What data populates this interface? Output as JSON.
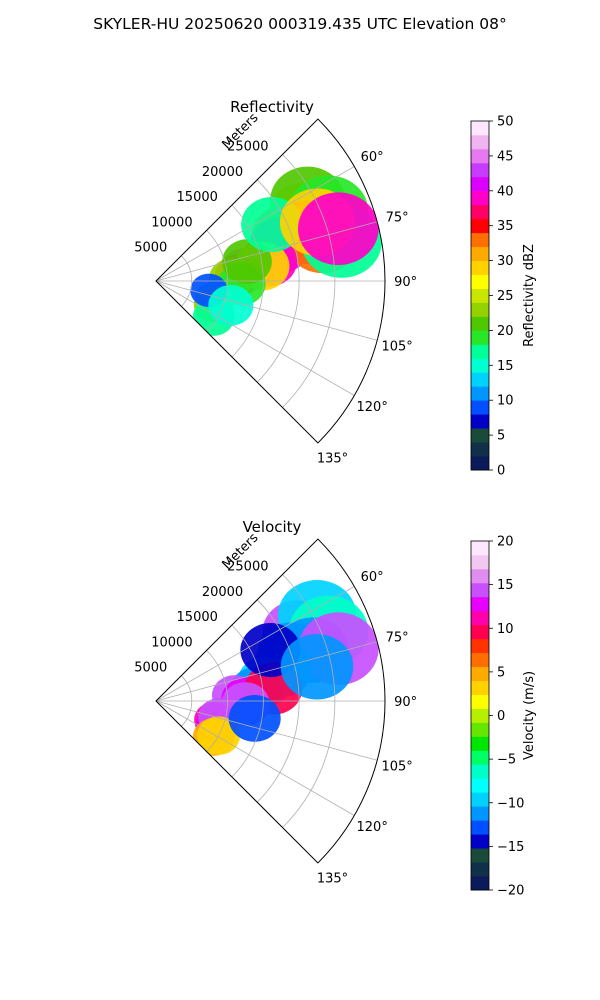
{
  "figure": {
    "suptitle": "SKYLER-HU  20250620  000319.435 UTC Elevation 08°"
  },
  "chart_data": [
    {
      "type": "polar-ppi",
      "title": "Reflectivity",
      "radial_label": "Meters",
      "range_ticks": [
        "5000",
        "10000",
        "15000",
        "20000",
        "25000"
      ],
      "range_values": [
        5000,
        10000,
        15000,
        20000,
        25000
      ],
      "range_max": 32000,
      "azimuth_limits": [
        45,
        135
      ],
      "azimuth_ticks": [
        "60°",
        "75°",
        "90°",
        "105°",
        "120°",
        "135°"
      ],
      "azimuth_values": [
        60,
        75,
        90,
        105,
        120,
        135
      ],
      "colorbar": {
        "label": "Reflectivity dBZ",
        "min": 0,
        "max": 50,
        "ticks": [
          "0",
          "5",
          "10",
          "15",
          "20",
          "25",
          "30",
          "35",
          "40",
          "45",
          "50"
        ],
        "tick_values": [
          0,
          5,
          10,
          15,
          20,
          25,
          30,
          35,
          40,
          45,
          50
        ],
        "palette": [
          "#0a1a5a",
          "#10304a",
          "#1a4a3a",
          "#0000c8",
          "#0050ff",
          "#0096ff",
          "#00d2ff",
          "#00ffd2",
          "#00ff96",
          "#28e628",
          "#50c800",
          "#96d200",
          "#c8e600",
          "#ffff00",
          "#ffd200",
          "#ffaa00",
          "#ff6e00",
          "#ff0000",
          "#ff0064",
          "#ff00c8",
          "#dc00ff",
          "#c83cff",
          "#e678f0",
          "#f0b4f0",
          "#ffe6ff"
        ]
      },
      "cells": [
        {
          "az": 66,
          "r": 22500,
          "dbz": 24
        },
        {
          "az": 62,
          "r": 24000,
          "dbz": 20
        },
        {
          "az": 68,
          "r": 26000,
          "dbz": 18
        },
        {
          "az": 72,
          "r": 22000,
          "dbz": 36
        },
        {
          "az": 70,
          "r": 19000,
          "dbz": 32
        },
        {
          "az": 74,
          "r": 18000,
          "dbz": 40
        },
        {
          "az": 76,
          "r": 24000,
          "dbz": 33
        },
        {
          "az": 78,
          "r": 26500,
          "dbz": 17
        },
        {
          "az": 80,
          "r": 16000,
          "dbz": 38
        },
        {
          "az": 83,
          "r": 12500,
          "dbz": 42
        },
        {
          "az": 86,
          "r": 11500,
          "dbz": 35
        },
        {
          "az": 82,
          "r": 15000,
          "dbz": 29
        },
        {
          "az": 88,
          "r": 10500,
          "dbz": 22
        },
        {
          "az": 92,
          "r": 12000,
          "dbz": 18
        },
        {
          "az": 78,
          "r": 13000,
          "dbz": 20
        },
        {
          "az": 64,
          "r": 18000,
          "dbz": 16
        },
        {
          "az": 70,
          "r": 24000,
          "dbz": 28
        },
        {
          "az": 74,
          "r": 26500,
          "dbz": 38
        },
        {
          "az": 108,
          "r": 8500,
          "dbz": 14
        },
        {
          "az": 112,
          "r": 8700,
          "dbz": 22
        },
        {
          "az": 122,
          "r": 9500,
          "dbz": 16
        },
        {
          "az": 100,
          "r": 7500,
          "dbz": 8
        },
        {
          "az": 108,
          "r": 11000,
          "dbz": 14
        }
      ]
    },
    {
      "type": "polar-ppi",
      "title": "Velocity",
      "radial_label": "Meters",
      "range_ticks": [
        "5000",
        "10000",
        "15000",
        "20000",
        "25000"
      ],
      "range_values": [
        5000,
        10000,
        15000,
        20000,
        25000
      ],
      "range_max": 32000,
      "azimuth_limits": [
        45,
        135
      ],
      "azimuth_ticks": [
        "60°",
        "75°",
        "90°",
        "105°",
        "120°",
        "135°"
      ],
      "azimuth_values": [
        60,
        75,
        90,
        105,
        120,
        135
      ],
      "colorbar": {
        "label": "Velocity (m/s)",
        "min": -20,
        "max": 20,
        "ticks": [
          "−20",
          "−15",
          "−10",
          "−5",
          "0",
          "5",
          "10",
          "15",
          "20"
        ],
        "tick_values": [
          -20,
          -15,
          -10,
          -5,
          0,
          5,
          10,
          15,
          20
        ],
        "palette": [
          "#0a1a5a",
          "#10304a",
          "#1a4a3a",
          "#0000c8",
          "#0050ff",
          "#0096ff",
          "#00d2ff",
          "#00ffff",
          "#00ffc8",
          "#00ff64",
          "#00e600",
          "#64e600",
          "#b4f000",
          "#ffff00",
          "#ffd200",
          "#ffaa00",
          "#ff6e00",
          "#ff3200",
          "#ff0050",
          "#ff00aa",
          "#e600ff",
          "#c850ff",
          "#e08cf0",
          "#f0c8f0",
          "#ffe6ff"
        ]
      },
      "cells": [
        {
          "az": 64,
          "r": 22000,
          "vel": 14
        },
        {
          "az": 62,
          "r": 25500,
          "vel": -10
        },
        {
          "az": 68,
          "r": 26000,
          "vel": -7
        },
        {
          "az": 70,
          "r": 20000,
          "vel": -11
        },
        {
          "az": 72,
          "r": 23000,
          "vel": -12
        },
        {
          "az": 74,
          "r": 26500,
          "vel": 15
        },
        {
          "az": 76,
          "r": 18000,
          "vel": -12
        },
        {
          "az": 80,
          "r": 15500,
          "vel": -10
        },
        {
          "az": 84,
          "r": 14000,
          "vel": -11
        },
        {
          "az": 86,
          "r": 11000,
          "vel": 15
        },
        {
          "az": 89,
          "r": 12500,
          "vel": 12
        },
        {
          "az": 84,
          "r": 16500,
          "vel": 10
        },
        {
          "az": 92,
          "r": 12500,
          "vel": 14
        },
        {
          "az": 66,
          "r": 17500,
          "vel": -14
        },
        {
          "az": 78,
          "r": 23000,
          "vel": -11
        },
        {
          "az": 108,
          "r": 8500,
          "vel": 11
        },
        {
          "az": 112,
          "r": 9000,
          "vel": 12
        },
        {
          "az": 104,
          "r": 9000,
          "vel": 15
        },
        {
          "az": 122,
          "r": 9500,
          "vel": 5
        },
        {
          "az": 119,
          "r": 10000,
          "vel": 3
        },
        {
          "az": 100,
          "r": 14000,
          "vel": -13
        }
      ]
    }
  ]
}
